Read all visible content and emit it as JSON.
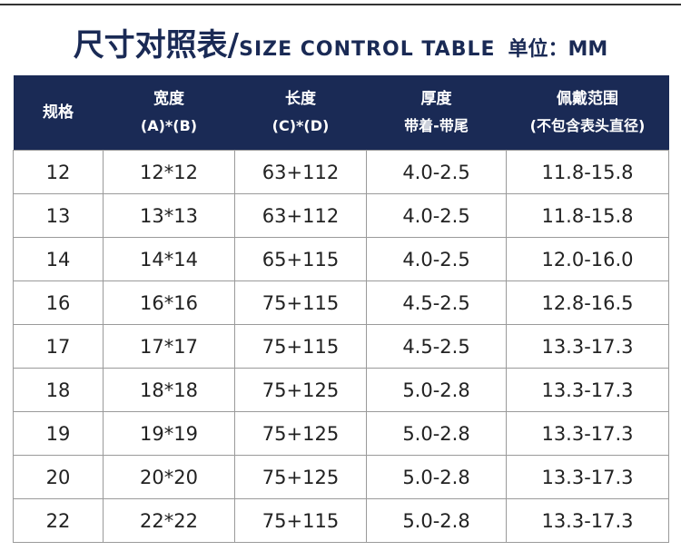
{
  "header": {
    "title": "尺寸对照表/",
    "subtitle": "SIZE CONTROL TABLE",
    "unit": "单位：MM"
  },
  "table": {
    "columns": [
      [
        "规格"
      ],
      [
        "宽度",
        "(A)*(B)"
      ],
      [
        "长度",
        "(C)*(D)"
      ],
      [
        "厚度",
        "带着-带尾"
      ],
      [
        "佩戴范围",
        "(不包含表头直径)"
      ]
    ],
    "rows": [
      [
        "12",
        "12*12",
        "63+112",
        "4.0-2.5",
        "11.8-15.8"
      ],
      [
        "13",
        "13*13",
        "63+112",
        "4.0-2.5",
        "11.8-15.8"
      ],
      [
        "14",
        "14*14",
        "65+115",
        "4.0-2.5",
        "12.0-16.0"
      ],
      [
        "16",
        "16*16",
        "75+115",
        "4.5-2.5",
        "12.8-16.5"
      ],
      [
        "17",
        "17*17",
        "75+115",
        "4.5-2.5",
        "13.3-17.3"
      ],
      [
        "18",
        "18*18",
        "75+125",
        "5.0-2.8",
        "13.3-17.3"
      ],
      [
        "19",
        "19*19",
        "75+125",
        "5.0-2.8",
        "13.3-17.3"
      ],
      [
        "20",
        "20*20",
        "75+125",
        "5.0-2.8",
        "13.3-17.3"
      ],
      [
        "22",
        "22*22",
        "75+115",
        "5.0-2.8",
        "13.3-17.3"
      ]
    ]
  }
}
